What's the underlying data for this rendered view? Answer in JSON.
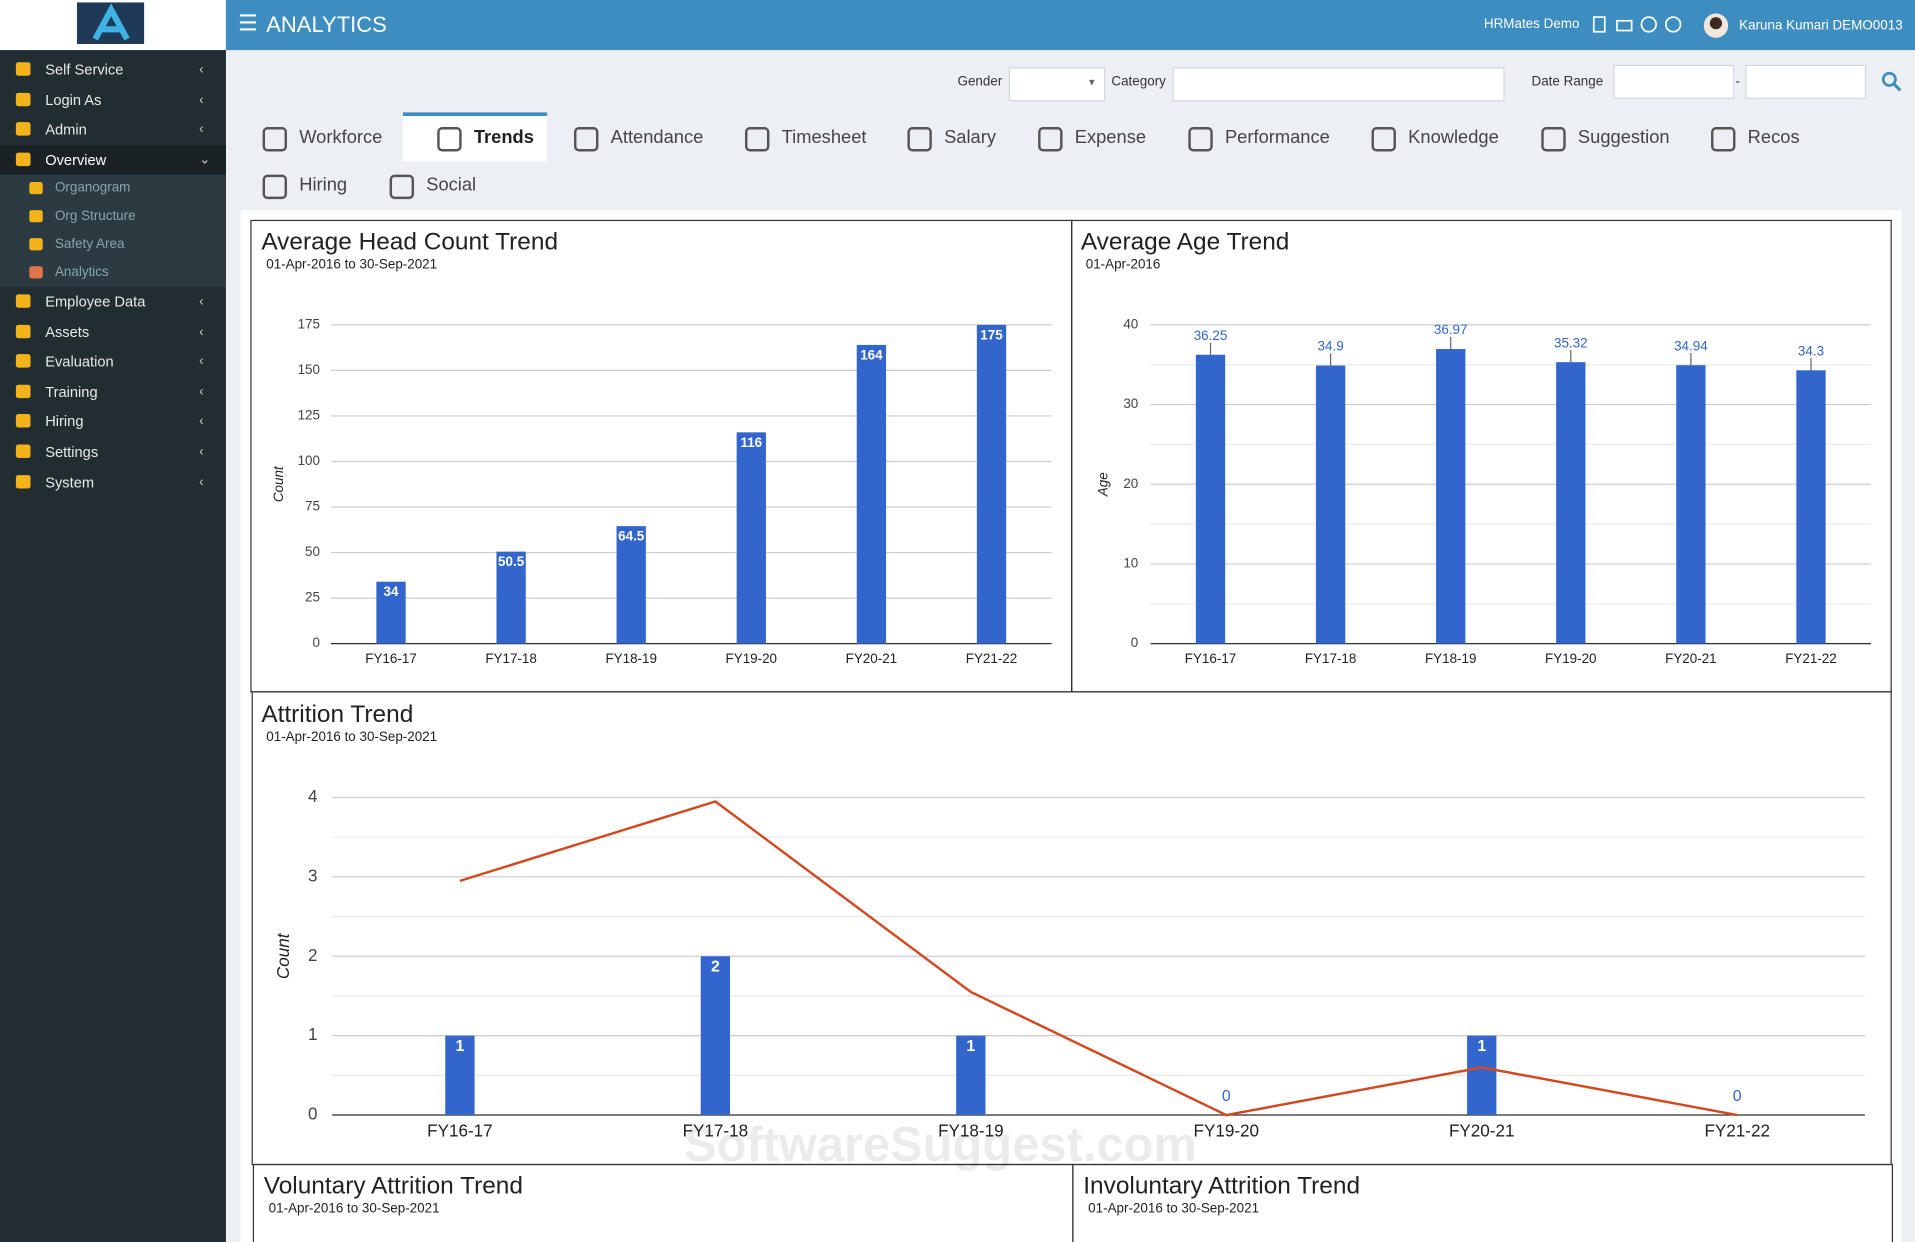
{
  "header": {
    "title": "ANALYTICS",
    "company": "HRMates Demo",
    "user": "Karuna Kumari DEMO0013"
  },
  "sidebar": {
    "menu": [
      "Self Service",
      "Login As",
      "Admin",
      "Overview"
    ],
    "submenu": [
      "Organogram",
      "Org Structure",
      "Safety Area",
      "Analytics"
    ],
    "menu_after": [
      "Employee Data",
      "Assets",
      "Evaluation",
      "Training",
      "Hiring",
      "Settings",
      "System"
    ]
  },
  "filters": {
    "gender": "Gender",
    "category": "Category",
    "date_range": "Date Range",
    "separator": "-"
  },
  "tabs": [
    "Workforce",
    "Trends",
    "Attendance",
    "Timesheet",
    "Salary",
    "Expense",
    "Performance",
    "Knowledge",
    "Suggestion",
    "Recos",
    "Hiring",
    "Social"
  ],
  "chart_data": [
    {
      "type": "bar",
      "title": "Average Head Count Trend",
      "subtitle": "01-Apr-2016 to 30-Sep-2021",
      "y_label": "Count",
      "categories": [
        "FY16-17",
        "FY17-18",
        "FY18-19",
        "FY19-20",
        "FY20-21",
        "FY21-22"
      ],
      "series": [
        {
          "type": "bar",
          "color": "#3366cc",
          "values": [
            34,
            50.5,
            64.5,
            116,
            164,
            175
          ]
        }
      ],
      "data_labels": "inside",
      "ylim": [
        0,
        175
      ],
      "yticks": [
        0,
        25,
        50,
        75,
        100,
        125,
        150,
        175
      ],
      "grid": true
    },
    {
      "type": "bar",
      "title": "Average Age Trend",
      "subtitle": "01-Apr-2016",
      "y_label": "Age",
      "categories": [
        "FY16-17",
        "FY17-18",
        "FY18-19",
        "FY19-20",
        "FY20-21",
        "FY21-22"
      ],
      "series": [
        {
          "type": "bar",
          "color": "#3366cc",
          "values": [
            36.25,
            34.9,
            36.97,
            35.32,
            34.94,
            34.3
          ]
        }
      ],
      "data_labels": "outside",
      "ylim": [
        0,
        40
      ],
      "yticks": [
        0,
        10,
        20,
        30,
        40
      ],
      "minor_yticks": [
        5,
        15,
        25,
        35
      ],
      "grid": true
    },
    {
      "type": "combo",
      "title": "Attrition Trend",
      "subtitle": "01-Apr-2016 to 30-Sep-2021",
      "y_label": "Count",
      "categories": [
        "FY16-17",
        "FY17-18",
        "FY18-19",
        "FY19-20",
        "FY20-21",
        "FY21-22"
      ],
      "series": [
        {
          "type": "bar",
          "color": "#3366cc",
          "values": [
            1,
            2,
            1,
            0,
            1,
            0
          ]
        },
        {
          "type": "line",
          "color": "#d2491f",
          "values": [
            2.95,
            3.95,
            1.55,
            0,
            0.6,
            0
          ]
        }
      ],
      "data_labels": "inside",
      "ylim": [
        0,
        4
      ],
      "yticks": [
        0,
        1,
        2,
        3,
        4
      ],
      "minor_yticks": [
        0.5,
        1.5,
        2.5,
        3.5
      ],
      "grid": true
    }
  ],
  "partial_panels": [
    {
      "title": "Voluntary Attrition Trend",
      "subtitle": "01-Apr-2016 to 30-Sep-2021"
    },
    {
      "title": "Involuntary Attrition Trend",
      "subtitle": "01-Apr-2016 to 30-Sep-2021"
    }
  ],
  "watermark": "SoftwareSuggest.com"
}
